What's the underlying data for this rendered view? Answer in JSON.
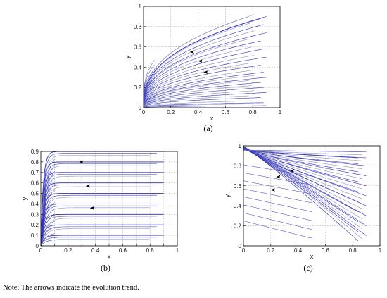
{
  "figure": {
    "note": "Note: The arrows indicate the evolution trend."
  },
  "chart_data": [
    {
      "type": "line",
      "panel_label": "(a)",
      "title": "",
      "xlabel": "x",
      "ylabel": "y",
      "xlim": [
        0,
        1
      ],
      "ylim": [
        0,
        1
      ],
      "xticks": [
        0,
        0.2,
        0.4,
        0.6,
        0.8,
        1
      ],
      "xtick_labels": [
        "0",
        "0.2",
        "0.4",
        "0.6",
        "0.8",
        "1"
      ],
      "yticks": [
        0,
        0.2,
        0.4,
        0.6,
        0.8,
        1
      ],
      "ytick_labels": [
        "0",
        "0.2",
        "0.4",
        "0.6",
        "0.8",
        "1"
      ],
      "grid": true,
      "series_color": "#2f2fbf",
      "trajectory_family": "concave curves rising steeply from x≈0 and flattening toward x≈0.9",
      "trajectory_endpoints_y_at_x_0_9": [
        0.02,
        0.05,
        0.1,
        0.15,
        0.2,
        0.25,
        0.3,
        0.35,
        0.42,
        0.5,
        0.58,
        0.66,
        0.74,
        0.82,
        0.88,
        0.9
      ],
      "arrows": [
        {
          "x": 0.36,
          "y": 0.55,
          "direction": "left"
        },
        {
          "x": 0.42,
          "y": 0.46,
          "direction": "left"
        },
        {
          "x": 0.46,
          "y": 0.35,
          "direction": "left"
        }
      ]
    },
    {
      "type": "line",
      "panel_label": "(b)",
      "title": "",
      "xlabel": "x",
      "ylabel": "y",
      "xlim": [
        0,
        1
      ],
      "ylim": [
        0,
        0.9
      ],
      "xticks": [
        0,
        0.1,
        0.2,
        0.3,
        0.4,
        0.5,
        0.6,
        0.7,
        0.8,
        0.9,
        1
      ],
      "xtick_labels": [
        "0",
        "",
        "0.2",
        "",
        "0.4",
        "",
        "0.6",
        "",
        "0.8",
        "",
        "1"
      ],
      "yticks": [
        0,
        0.1,
        0.2,
        0.3,
        0.4,
        0.5,
        0.6,
        0.7,
        0.8,
        0.9
      ],
      "ytick_labels": [
        "0",
        "0.1",
        "0.2",
        "0.3",
        "0.4",
        "0.5",
        "0.6",
        "0.7",
        "0.8",
        "0.9"
      ],
      "grid": true,
      "series_color": "#2f2fbf",
      "trajectory_family": "curves rising quickly near x≈0 then nearly flat plateaus",
      "plateau_levels_y": [
        0.1,
        0.2,
        0.3,
        0.4,
        0.5,
        0.6,
        0.7,
        0.8,
        0.9
      ],
      "arrows": [
        {
          "x": 0.3,
          "y": 0.8,
          "direction": "left"
        },
        {
          "x": 0.35,
          "y": 0.57,
          "direction": "left"
        },
        {
          "x": 0.38,
          "y": 0.36,
          "direction": "left"
        }
      ]
    },
    {
      "type": "line",
      "panel_label": "(c)",
      "title": "",
      "xlabel": "x",
      "ylabel": "y",
      "xlim": [
        0,
        1
      ],
      "ylim": [
        0,
        1
      ],
      "xticks": [
        0,
        0.2,
        0.4,
        0.6,
        0.8,
        1
      ],
      "xtick_labels": [
        "0",
        "0.2",
        "0.4",
        "0.6",
        "0.8",
        "1"
      ],
      "yticks": [
        0,
        0.2,
        0.4,
        0.6,
        0.8,
        1
      ],
      "ytick_labels": [
        "0",
        "0.2",
        "0.4",
        "0.6",
        "0.8",
        "1"
      ],
      "grid": true,
      "series_color": "#2f2fbf",
      "trajectory_family": "curves fanning out from the top-left corner (x≈0, y≈1) and descending toward the right",
      "trajectory_endpoints_y_at_x_0_9": [
        0.1,
        0.2,
        0.3,
        0.4,
        0.5,
        0.6,
        0.7,
        0.8,
        0.88,
        0.94
      ],
      "arrows": [
        {
          "x": 0.36,
          "y": 0.75,
          "direction": "left"
        },
        {
          "x": 0.26,
          "y": 0.69,
          "direction": "left"
        },
        {
          "x": 0.22,
          "y": 0.56,
          "direction": "left"
        }
      ]
    }
  ]
}
